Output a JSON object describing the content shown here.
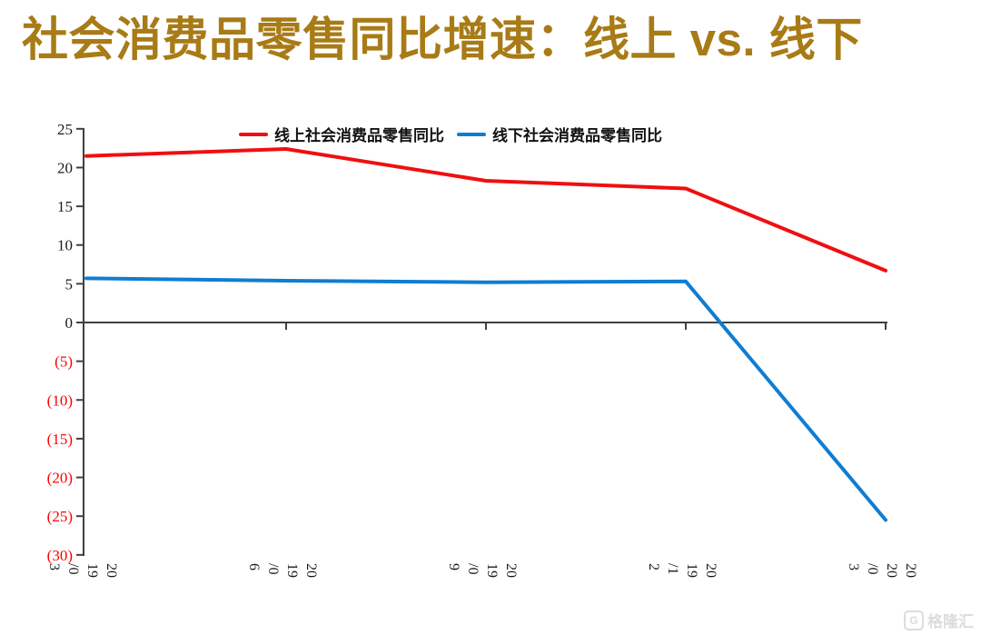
{
  "chart_data": {
    "type": "line",
    "title": "社会消费品零售同比增速：线上 vs. 线下",
    "title_color": "#a87b16",
    "categories": [
      "2019/03",
      "2019/06",
      "2019/09",
      "2019/12",
      "2020/03"
    ],
    "series": [
      {
        "name": "线上社会消费品零售同比",
        "color": "#f00f0f",
        "values": [
          21.5,
          22.4,
          18.3,
          17.3,
          6.7
        ]
      },
      {
        "name": "线下社会消费品零售同比",
        "color": "#0f7dd2",
        "values": [
          5.7,
          5.4,
          5.2,
          5.3,
          -25.5
        ]
      }
    ],
    "ylim": [
      -30,
      25
    ],
    "ytick_step": 5,
    "yticks": [
      {
        "value": 25,
        "label": "25",
        "color": "#1a1a1a"
      },
      {
        "value": 20,
        "label": "20",
        "color": "#1a1a1a"
      },
      {
        "value": 15,
        "label": "15",
        "color": "#1a1a1a"
      },
      {
        "value": 10,
        "label": "10",
        "color": "#1a1a1a"
      },
      {
        "value": 5,
        "label": "5",
        "color": "#1a1a1a"
      },
      {
        "value": 0,
        "label": "0",
        "color": "#1a1a1a"
      },
      {
        "value": -5,
        "label": "(5)",
        "color": "#fe0000"
      },
      {
        "value": -10,
        "label": "(10)",
        "color": "#fe0000"
      },
      {
        "value": -15,
        "label": "(15)",
        "color": "#fe0000"
      },
      {
        "value": -20,
        "label": "(20)",
        "color": "#fe0000"
      },
      {
        "value": -25,
        "label": "(25)",
        "color": "#fe0000"
      },
      {
        "value": -30,
        "label": "(30)",
        "color": "#fe0000"
      }
    ],
    "xticks": [
      {
        "label": "2019/03",
        "columns": [
          "3",
          "/0",
          "19",
          "20"
        ]
      },
      {
        "label": "2019/06",
        "columns": [
          "6",
          "/0",
          "19",
          "20"
        ]
      },
      {
        "label": "2019/09",
        "columns": [
          "9",
          "/0",
          "19",
          "20"
        ]
      },
      {
        "label": "2019/12",
        "columns": [
          "2",
          "/1",
          "19",
          "20"
        ]
      },
      {
        "label": "2020/03",
        "columns": [
          "3",
          "/0",
          "20",
          "20"
        ]
      }
    ],
    "legend_position": "top-center",
    "grid": false,
    "axis_color": "#404040",
    "negative_label_style": "red parentheses"
  },
  "ui": {
    "watermark": {
      "logo": "G",
      "text": "格隆汇"
    }
  }
}
